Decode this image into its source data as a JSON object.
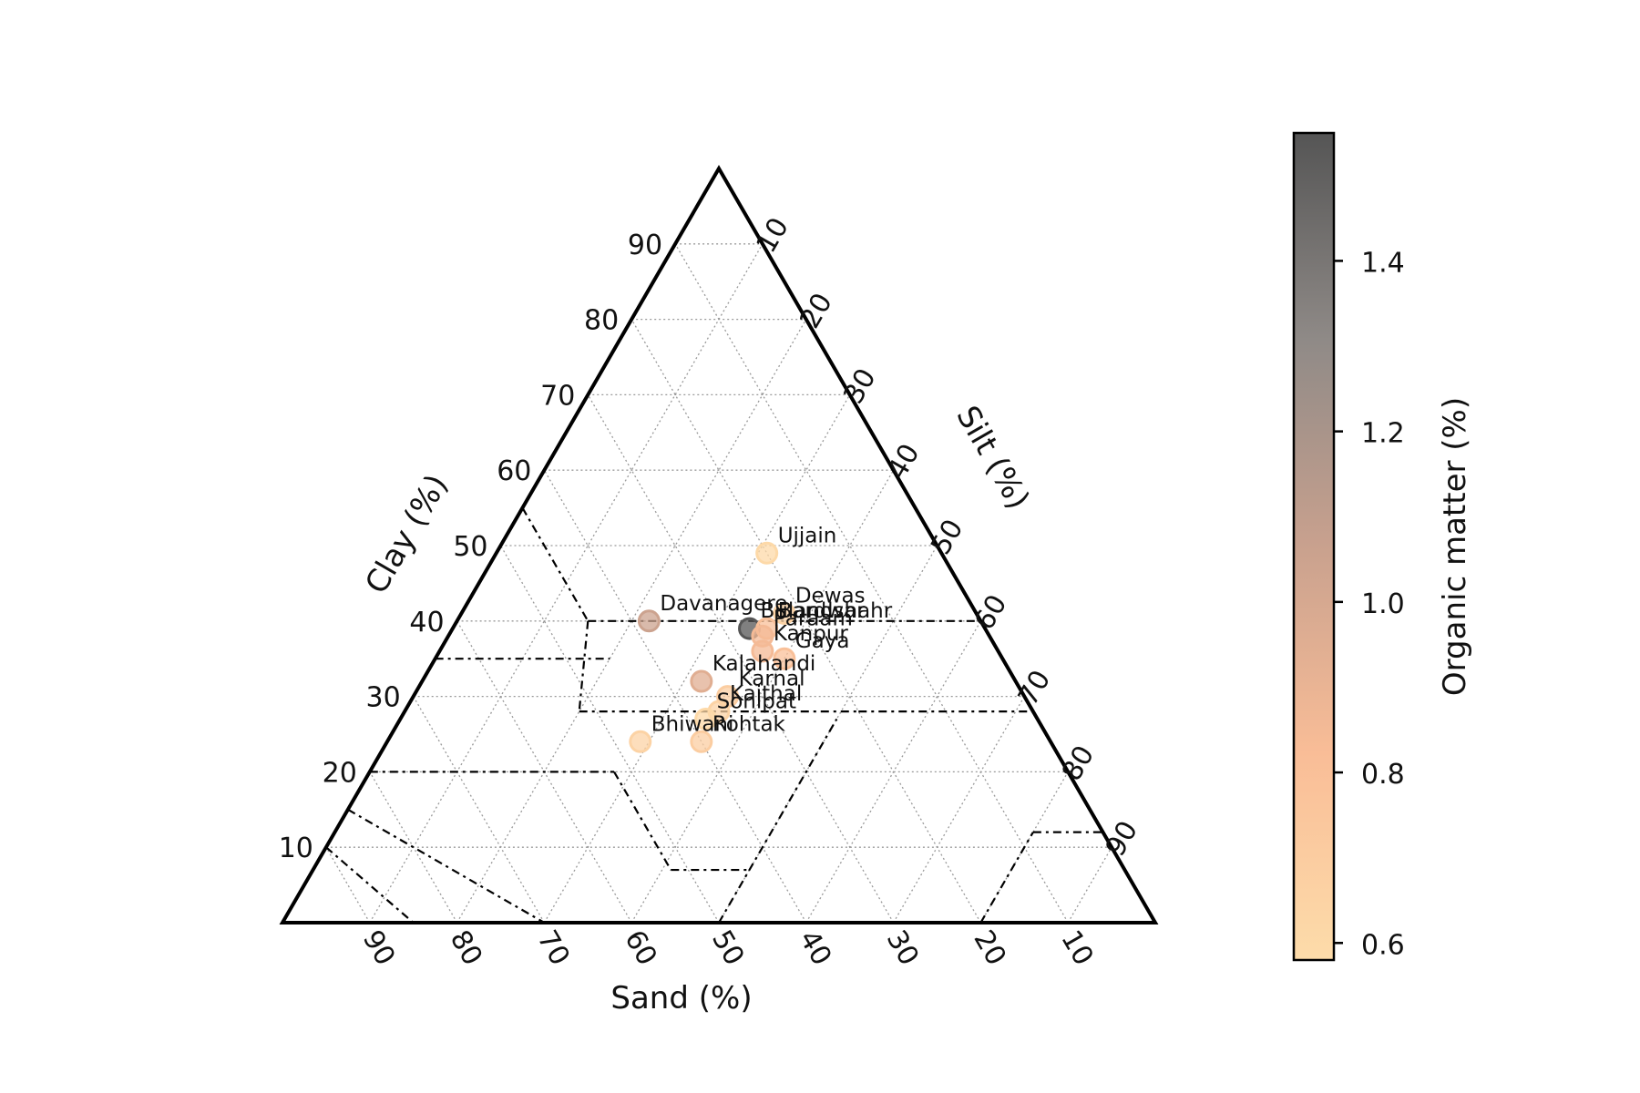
{
  "chart_data": {
    "type": "scatter",
    "subtype": "ternary",
    "axes": {
      "sand": {
        "label": "Sand (%)",
        "ticks": [
          90,
          80,
          70,
          60,
          50,
          40,
          30,
          20,
          10
        ]
      },
      "silt": {
        "label": "Silt (%)",
        "ticks": [
          10,
          20,
          30,
          40,
          50,
          60,
          70,
          80,
          90
        ]
      },
      "clay": {
        "label": "Clay (%)",
        "ticks": [
          10,
          20,
          30,
          40,
          50,
          60,
          70,
          80,
          90
        ]
      }
    },
    "grid": true,
    "texture_class_boundaries": true,
    "points": [
      {
        "name": "Ujjain",
        "sand": 20,
        "silt": 31,
        "clay": 49,
        "om": 0.6
      },
      {
        "name": "Dewas",
        "sand": 22,
        "silt": 37,
        "clay": 41,
        "om": 0.65
      },
      {
        "name": "Davanagere",
        "sand": 38,
        "silt": 22,
        "clay": 40,
        "om": 1.05
      },
      {
        "name": "Bulandshahr",
        "sand": 27,
        "silt": 34,
        "clay": 39,
        "om": 1.55
      },
      {
        "name": "Bardwar",
        "sand": 25,
        "silt": 36,
        "clay": 39,
        "om": 0.8
      },
      {
        "name": "Paraam",
        "sand": 26,
        "silt": 36,
        "clay": 38,
        "om": 0.85
      },
      {
        "name": "Kanpur",
        "sand": 27,
        "silt": 37,
        "clay": 36,
        "om": 0.85
      },
      {
        "name": "Gaya",
        "sand": 25,
        "silt": 40,
        "clay": 35,
        "om": 0.8
      },
      {
        "name": "Kalahandi",
        "sand": 36,
        "silt": 32,
        "clay": 32,
        "om": 0.95
      },
      {
        "name": "Karnal",
        "sand": 34,
        "silt": 36,
        "clay": 30,
        "om": 0.7
      },
      {
        "name": "Kaithal",
        "sand": 36,
        "silt": 36,
        "clay": 28,
        "om": 0.65
      },
      {
        "name": "Sonipat",
        "sand": 38,
        "silt": 35,
        "clay": 27,
        "om": 0.6
      },
      {
        "name": "Bhiwani",
        "sand": 47,
        "silt": 29,
        "clay": 24,
        "om": 0.65
      },
      {
        "name": "Rohtak",
        "sand": 40,
        "silt": 36,
        "clay": 24,
        "om": 0.7
      }
    ],
    "colorbar": {
      "label": "Organic matter (%)",
      "range": [
        0.58,
        1.55
      ],
      "ticks": [
        "0.6",
        "0.8",
        "1.0",
        "1.2",
        "1.4"
      ],
      "tick_values": [
        0.6,
        0.8,
        1.0,
        1.2,
        1.4
      ],
      "colormap": [
        "#fddcaa",
        "#f9bd97",
        "#c9a18e",
        "#8f8a87",
        "#555555"
      ]
    }
  }
}
